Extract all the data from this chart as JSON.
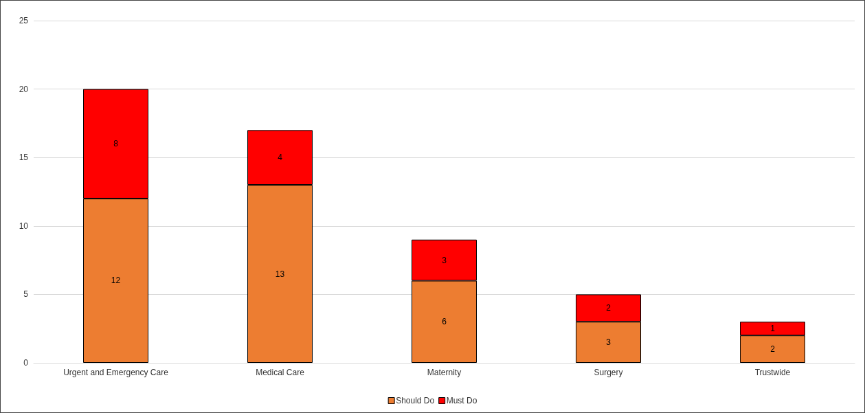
{
  "chart_data": {
    "type": "bar",
    "stacked": true,
    "categories": [
      "Urgent and Emergency Care",
      "Medical Care",
      "Maternity",
      "Surgery",
      "Trustwide"
    ],
    "series": [
      {
        "name": "Should Do",
        "color": "#ed7d31",
        "values": [
          12,
          13,
          6,
          3,
          2
        ]
      },
      {
        "name": "Must Do",
        "color": "#ff0000",
        "values": [
          8,
          4,
          3,
          2,
          1
        ]
      }
    ],
    "ylim": [
      0,
      25
    ],
    "yticks": [
      0,
      5,
      10,
      15,
      20,
      25
    ],
    "grid": "y",
    "legend": "bottom",
    "data_labels": true
  }
}
